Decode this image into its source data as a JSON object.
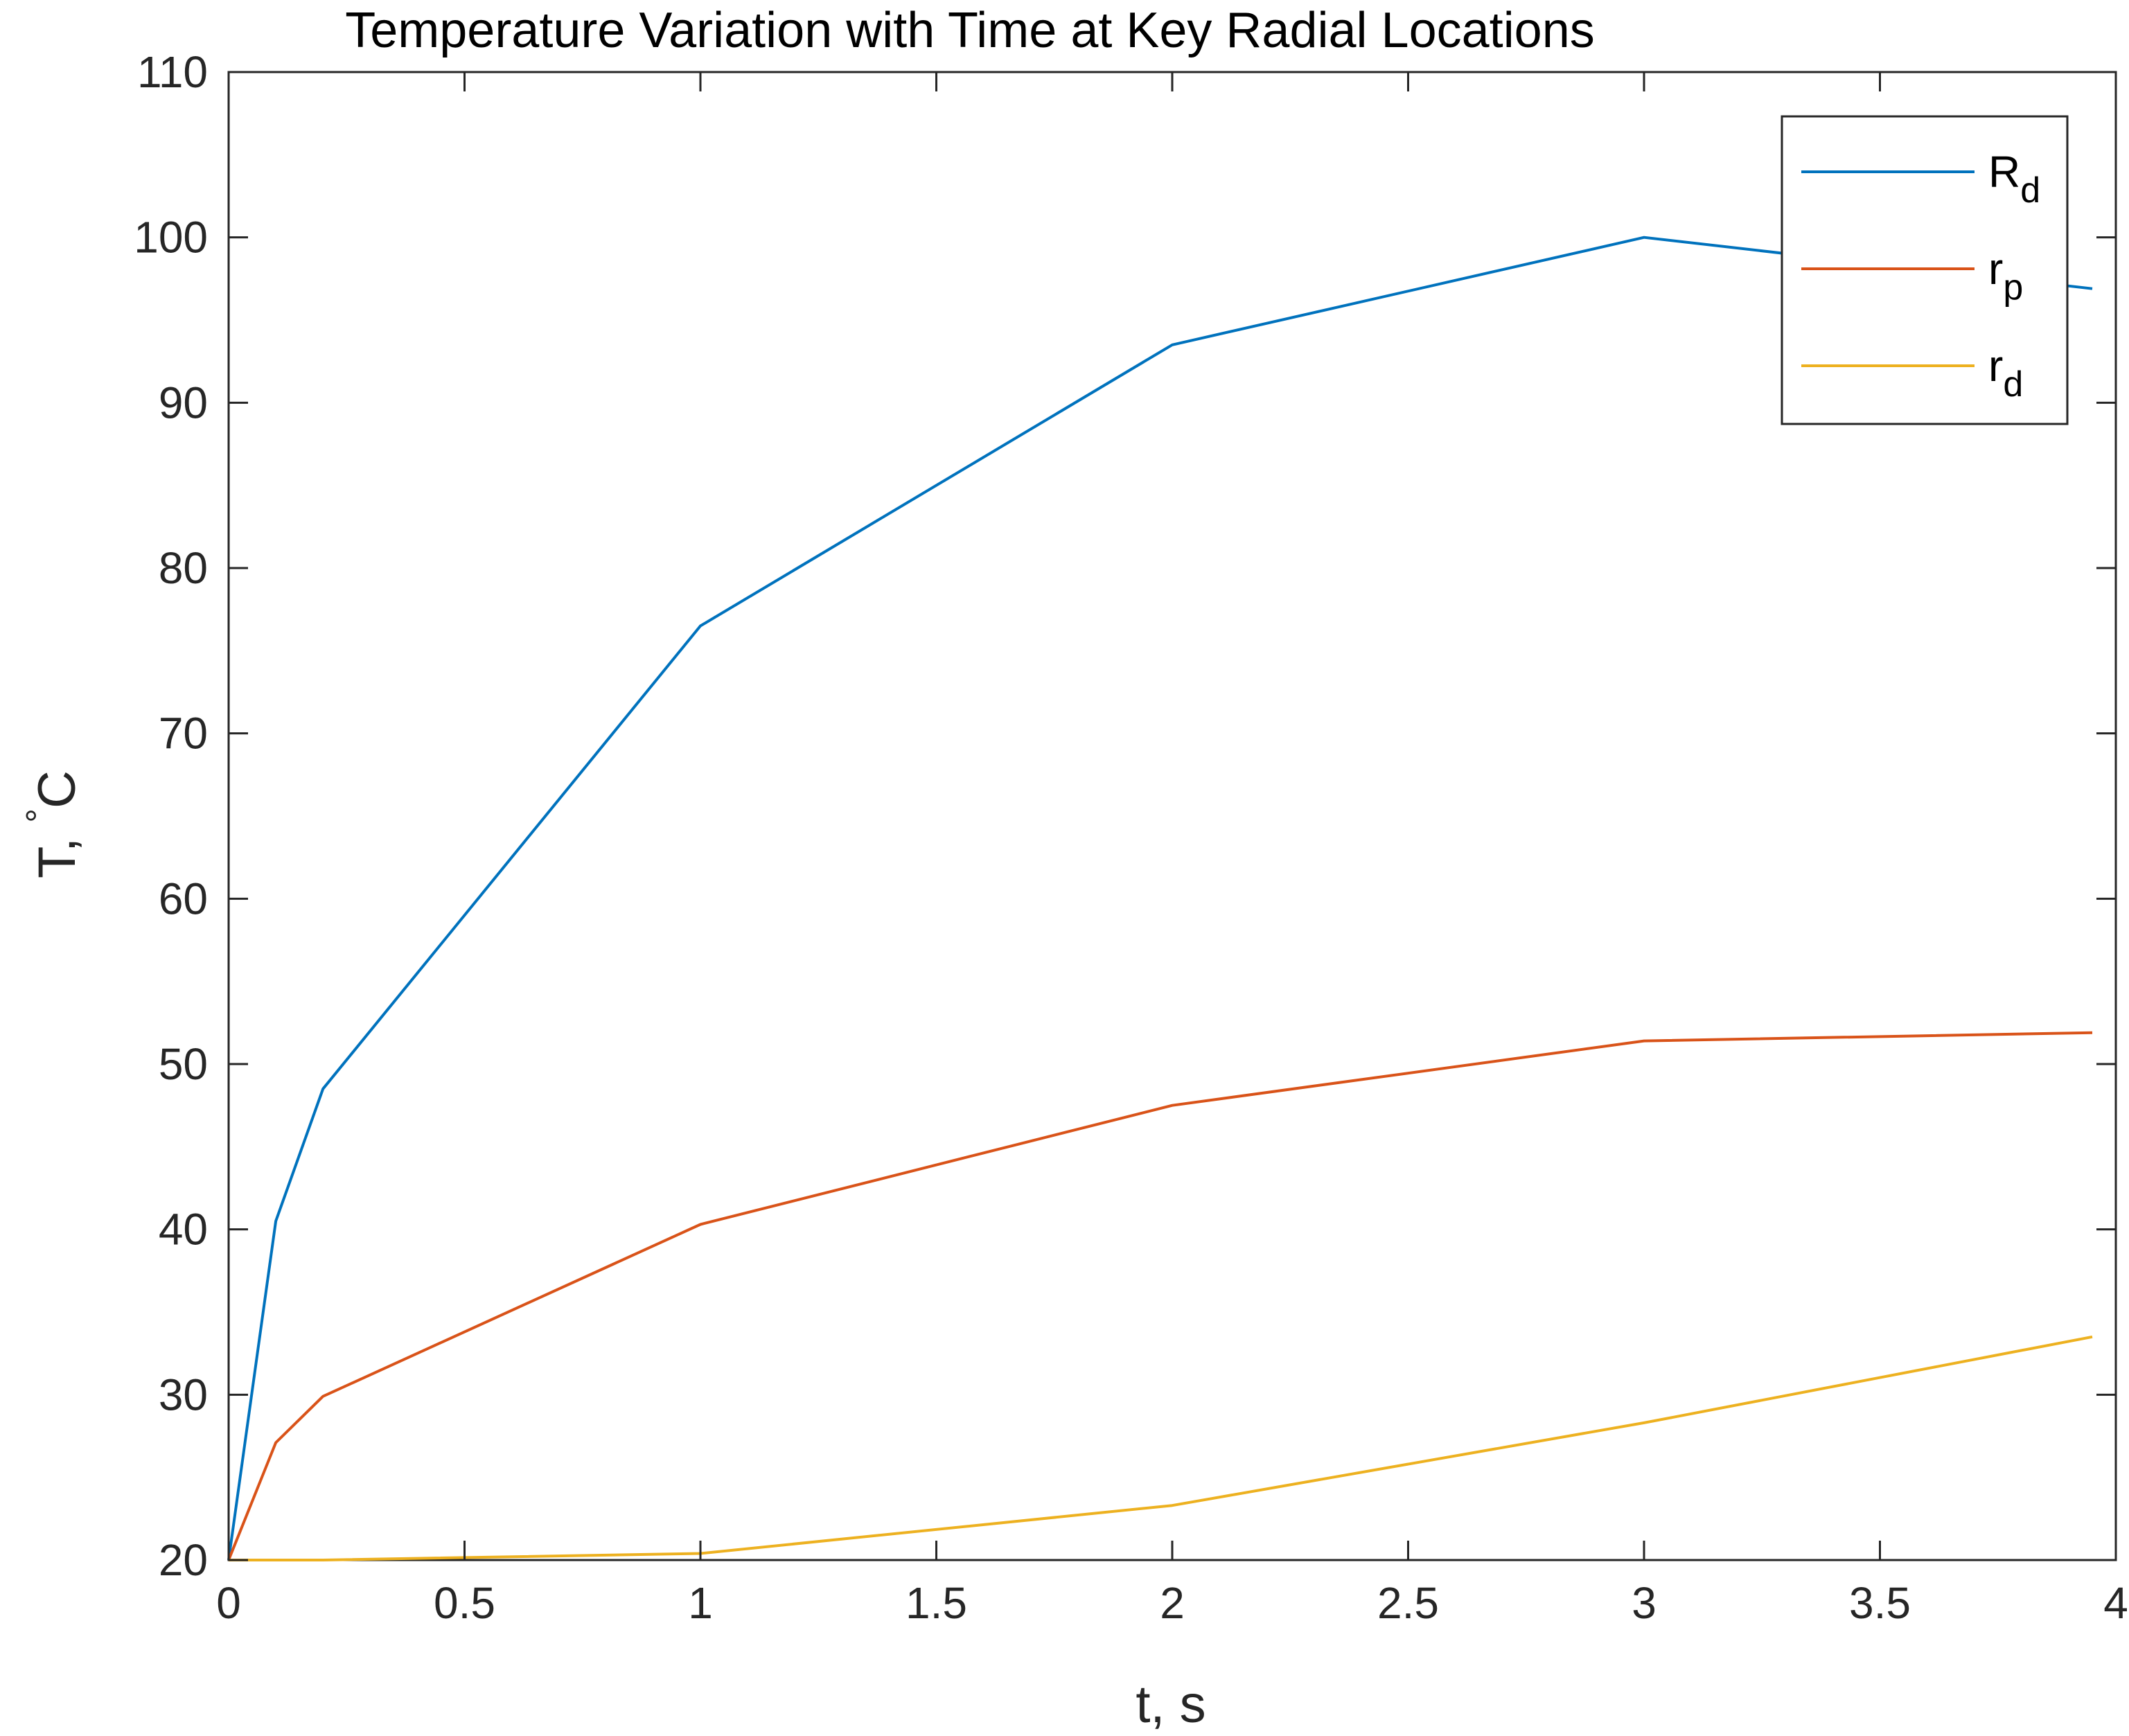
{
  "chart_data": {
    "type": "line",
    "title": "Temperature Variation with Time at Key Radial Locations",
    "xlabel": "t, s",
    "ylabel": {
      "base": "T, ",
      "sup": "°",
      "after": "C"
    },
    "xlim": [
      0,
      4
    ],
    "ylim": [
      20,
      110
    ],
    "xticks": [
      0,
      0.5,
      1,
      1.5,
      2,
      2.5,
      3,
      3.5,
      4
    ],
    "xtick_labels": [
      "0",
      "0.5",
      "1",
      "1.5",
      "2",
      "2.5",
      "3",
      "3.5",
      "4"
    ],
    "yticks": [
      20,
      30,
      40,
      50,
      60,
      70,
      80,
      90,
      100,
      110
    ],
    "ytick_labels": [
      "20",
      "30",
      "40",
      "50",
      "60",
      "70",
      "80",
      "90",
      "100",
      "110"
    ],
    "grid": false,
    "legend_position": "top-right",
    "series": [
      {
        "name": "R_d",
        "label_main": "R",
        "label_sub": "d",
        "color": "#0072BD",
        "x": [
          0,
          0.1,
          0.2,
          1,
          2,
          3,
          3.95
        ],
        "y": [
          20,
          40.5,
          48.5,
          76.5,
          93.5,
          100,
          96.9
        ]
      },
      {
        "name": "r_p",
        "label_main": "r",
        "label_sub": "p",
        "color": "#D95319",
        "x": [
          0,
          0.1,
          0.2,
          1,
          2,
          3,
          3.95
        ],
        "y": [
          20,
          27.1,
          29.9,
          40.3,
          47.5,
          51.4,
          51.9
        ]
      },
      {
        "name": "r_d",
        "label_main": "r",
        "label_sub": "d",
        "color": "#EDB120",
        "x": [
          0,
          0.2,
          1,
          2,
          3,
          3.95
        ],
        "y": [
          20,
          20,
          20.4,
          23.3,
          28.3,
          33.5
        ]
      }
    ]
  }
}
